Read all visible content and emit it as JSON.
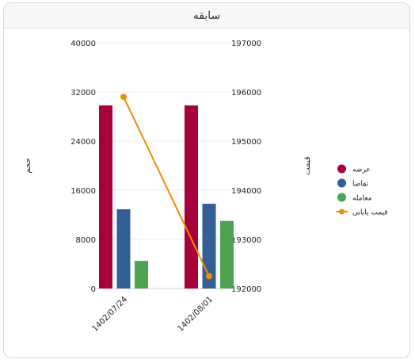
{
  "panel": {
    "title": "سابقه"
  },
  "chart_data": {
    "type": "bar",
    "categories": [
      "1402/07/24",
      "1402/08/01"
    ],
    "series": [
      {
        "name": "عرضه",
        "type": "bar",
        "axis": "left",
        "color": "#a8003b",
        "values": [
          29800,
          29800
        ]
      },
      {
        "name": "تقاضا",
        "type": "bar",
        "axis": "left",
        "color": "#335e96",
        "values": [
          12900,
          13800
        ]
      },
      {
        "name": "معامله",
        "type": "bar",
        "axis": "left",
        "color": "#4da352",
        "values": [
          4500,
          11000
        ]
      },
      {
        "name": "قیمت پایانی",
        "type": "line",
        "axis": "right",
        "color": "#f08c00",
        "values": [
          195900,
          192250
        ]
      }
    ],
    "left_axis": {
      "label": "حجم",
      "ylim": [
        0,
        40000
      ],
      "ticks": [
        0,
        8000,
        16000,
        24000,
        32000,
        40000
      ]
    },
    "right_axis": {
      "label": "قیمت",
      "ylim": [
        192000,
        197000
      ],
      "ticks": [
        192000,
        193000,
        194000,
        195000,
        196000,
        197000
      ]
    },
    "grid": true,
    "legend": "right"
  }
}
